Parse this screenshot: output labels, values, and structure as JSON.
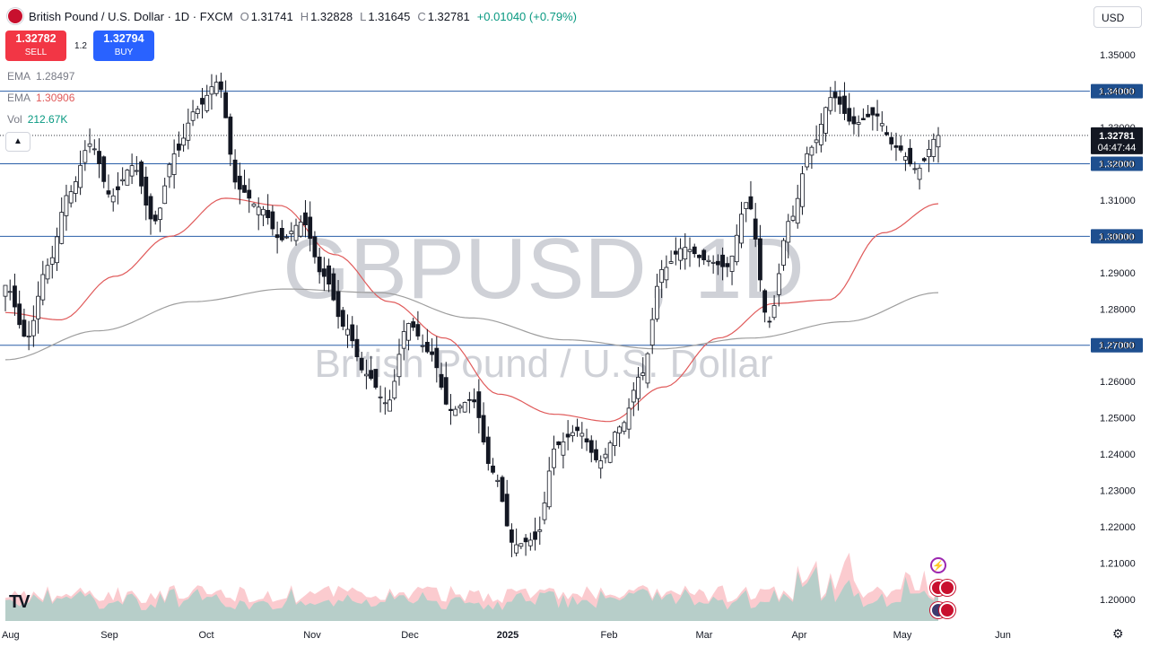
{
  "header": {
    "symbol_title": "British Pound / U.S. Dollar · 1D · FXCM",
    "open_label": "O",
    "open": "1.31741",
    "high_label": "H",
    "high": "1.32828",
    "low_label": "L",
    "low": "1.31645",
    "close_label": "C",
    "close": "1.32781",
    "change": "+0.01040 (+0.79%)"
  },
  "trade": {
    "sell_price": "1.32782",
    "sell_label": "SELL",
    "buy_price": "1.32794",
    "buy_label": "BUY",
    "spread": "1.2"
  },
  "indicators": {
    "ema1_name": "EMA",
    "ema1_value": "1.28497",
    "ema2_name": "EMA",
    "ema2_value": "1.30906",
    "vol_name": "Vol",
    "vol_value": "212.67K"
  },
  "currency_button": "USD",
  "watermark": {
    "symbol": "GBPUSD, 1D",
    "name": "British Pound / U.S. Dollar"
  },
  "price_tag": {
    "price": "1.32781",
    "countdown": "04:47:44"
  },
  "colors": {
    "up": "#089981",
    "down": "#f23645",
    "ema_fast": "#e05a5a",
    "ema_slow": "#9e9e9e",
    "hline": "#2a5ea8",
    "vol_up": "#7fd1c5",
    "vol_down": "#f7a1a8"
  },
  "chart_data": {
    "type": "candlestick",
    "title": "British Pound / U.S. Dollar · 1D · FXCM",
    "x_ticks": [
      "Aug",
      "Sep",
      "Oct",
      "Nov",
      "Dec",
      "2025",
      "Feb",
      "Mar",
      "Apr",
      "May",
      "Jun"
    ],
    "y_ticks": [
      1.2,
      1.21,
      1.22,
      1.23,
      1.24,
      1.25,
      1.26,
      1.27,
      1.28,
      1.29,
      1.3,
      1.31,
      1.32,
      1.33,
      1.34,
      1.35
    ],
    "ylim": [
      1.1975,
      1.3535
    ],
    "horizontal_levels": [
      1.34,
      1.32,
      1.3,
      1.27
    ],
    "last_price": 1.32781,
    "close_path": [
      [
        "Aug",
        1.2865
      ],
      [
        "Aug",
        1.272
      ],
      [
        "Aug",
        1.292
      ],
      [
        "Aug",
        1.312
      ],
      [
        "Sep",
        1.3255
      ],
      [
        "Sep",
        1.311
      ],
      [
        "Sep",
        1.3195
      ],
      [
        "Sep",
        1.304
      ],
      [
        "Sep",
        1.3228
      ],
      [
        "Sep",
        1.335
      ],
      [
        "Oct",
        1.3425
      ],
      [
        "Oct",
        1.313
      ],
      [
        "Oct",
        1.308
      ],
      [
        "Oct",
        1.299
      ],
      [
        "Nov",
        1.304
      ],
      [
        "Nov",
        1.289
      ],
      [
        "Nov",
        1.275
      ],
      [
        "Nov",
        1.262
      ],
      [
        "Dec",
        1.254
      ],
      [
        "Dec",
        1.276
      ],
      [
        "Dec",
        1.268
      ],
      [
        "Dec",
        1.252
      ],
      [
        "2025",
        1.255
      ],
      [
        "2025",
        1.235
      ],
      [
        "2025",
        1.215
      ],
      [
        "2025",
        1.2165
      ],
      [
        "Feb",
        1.2425
      ],
      [
        "Feb",
        1.2465
      ],
      [
        "Feb",
        1.238
      ],
      [
        "Feb",
        1.2475
      ],
      [
        "Mar",
        1.262
      ],
      [
        "Mar",
        1.291
      ],
      [
        "Mar",
        1.297
      ],
      [
        "Mar",
        1.2935
      ],
      [
        "Mar",
        1.2915
      ],
      [
        "Apr",
        1.3095
      ],
      [
        "Apr",
        1.2765
      ],
      [
        "Apr",
        1.3045
      ],
      [
        "Apr",
        1.3245
      ],
      [
        "May",
        1.3385
      ],
      [
        "May",
        1.331
      ],
      [
        "May",
        1.3335
      ],
      [
        "May",
        1.3245
      ],
      [
        "May",
        1.3185
      ],
      [
        "May",
        1.3278
      ]
    ],
    "ema_fast_path": [
      [
        "Aug",
        1.279
      ],
      [
        "Aug",
        1.277
      ],
      [
        "Sep",
        1.289
      ],
      [
        "Sep",
        1.3
      ],
      [
        "Oct",
        1.3105
      ],
      [
        "Oct",
        1.3085
      ],
      [
        "Nov",
        1.295
      ],
      [
        "Nov",
        1.282
      ],
      [
        "Dec",
        1.272
      ],
      [
        "2025",
        1.2565
      ],
      [
        "2025",
        1.251
      ],
      [
        "Feb",
        1.249
      ],
      [
        "Mar",
        1.2585
      ],
      [
        "Mar",
        1.272
      ],
      [
        "Apr",
        1.2815
      ],
      [
        "Apr",
        1.2825
      ],
      [
        "May",
        1.301
      ],
      [
        "May",
        1.309
      ]
    ],
    "ema_slow_path": [
      [
        "Aug",
        1.266
      ],
      [
        "Sep",
        1.274
      ],
      [
        "Oct",
        1.282
      ],
      [
        "Nov",
        1.2855
      ],
      [
        "Dec",
        1.2845
      ],
      [
        "2025",
        1.2775
      ],
      [
        "Feb",
        1.2715
      ],
      [
        "Mar",
        1.269
      ],
      [
        "Mar",
        1.272
      ],
      [
        "Apr",
        1.2765
      ],
      [
        "May",
        1.2845
      ]
    ],
    "volume": {
      "label": "Vol",
      "value": "212.67K",
      "peaks": [
        "2025",
        "Feb",
        "Apr",
        "May"
      ]
    },
    "ema_labels": {
      "fast": "1.30906",
      "slow": "1.28497"
    }
  }
}
